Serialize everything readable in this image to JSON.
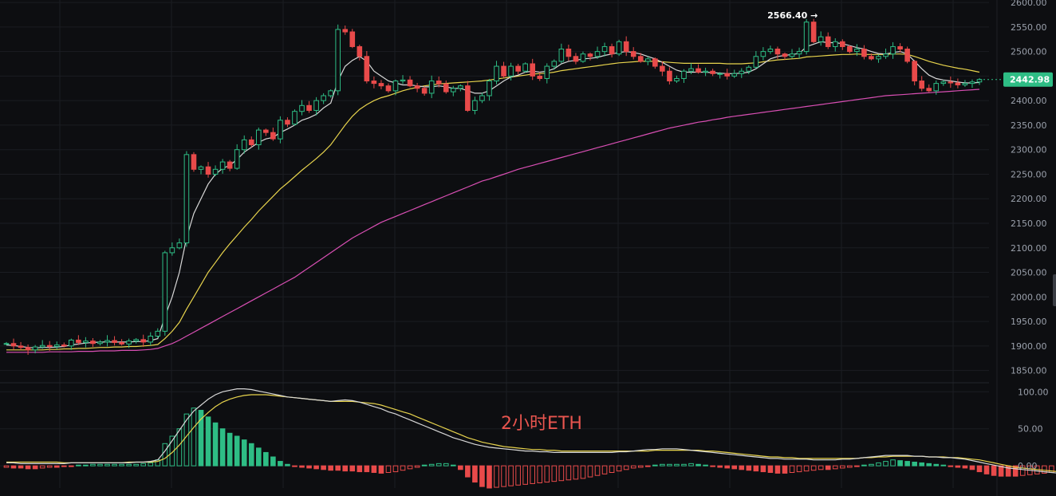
{
  "chart_data": [
    {
      "type": "candlestick",
      "series": [
        {
          "name": "",
          "kind": "candlestick"
        },
        {
          "name": "",
          "kind": "line",
          "color": "#d8d8d8"
        },
        {
          "name": "",
          "kind": "line",
          "color": "#e8d44d"
        },
        {
          "name": "",
          "kind": "line",
          "color": "#d94fb4"
        }
      ],
      "close": [
        1905,
        1900,
        1897,
        1892,
        1898,
        1901,
        1899,
        1902,
        1900,
        1912,
        1907,
        1910,
        1905,
        1908,
        1911,
        1907,
        1904,
        1910,
        1913,
        1908,
        1920,
        1930,
        2090,
        2100,
        2110,
        2290,
        2260,
        2265,
        2250,
        2260,
        2275,
        2262,
        2300,
        2320,
        2310,
        2340,
        2335,
        2322,
        2360,
        2352,
        2378,
        2390,
        2380,
        2400,
        2410,
        2420,
        2545,
        2540,
        2510,
        2490,
        2440,
        2435,
        2430,
        2420,
        2440,
        2442,
        2430,
        2425,
        2415,
        2440,
        2434,
        2418,
        2425,
        2430,
        2380,
        2400,
        2410,
        2440,
        2470,
        2450,
        2470,
        2460,
        2475,
        2450,
        2445,
        2470,
        2480,
        2505,
        2490,
        2480,
        2495,
        2490,
        2500,
        2510,
        2495,
        2520,
        2500,
        2490,
        2480,
        2485,
        2470,
        2460,
        2440,
        2445,
        2460,
        2465,
        2458,
        2460,
        2455,
        2455,
        2450,
        2455,
        2460,
        2468,
        2490,
        2500,
        2505,
        2495,
        2490,
        2495,
        2500,
        2560,
        2520,
        2530,
        2510,
        2520,
        2510,
        2500,
        2505,
        2490,
        2485,
        2490,
        2495,
        2510,
        2505,
        2480,
        2440,
        2425,
        2420,
        2435,
        2438,
        2436,
        2432,
        2435,
        2438,
        2442.98
      ],
      "open": [
        1905,
        1905,
        1900,
        1897,
        1892,
        1898,
        1901,
        1899,
        1902,
        1900,
        1912,
        1907,
        1910,
        1905,
        1908,
        1911,
        1907,
        1904,
        1910,
        1913,
        1908,
        1920,
        1930,
        2090,
        2100,
        2110,
        2290,
        2260,
        2265,
        2250,
        2260,
        2275,
        2262,
        2300,
        2320,
        2310,
        2340,
        2335,
        2322,
        2360,
        2352,
        2378,
        2390,
        2380,
        2400,
        2410,
        2420,
        2545,
        2540,
        2510,
        2490,
        2440,
        2435,
        2430,
        2420,
        2440,
        2442,
        2430,
        2425,
        2415,
        2440,
        2434,
        2418,
        2425,
        2430,
        2380,
        2400,
        2410,
        2440,
        2470,
        2450,
        2470,
        2460,
        2475,
        2450,
        2445,
        2470,
        2480,
        2505,
        2490,
        2480,
        2495,
        2490,
        2500,
        2510,
        2495,
        2520,
        2500,
        2490,
        2480,
        2485,
        2470,
        2460,
        2440,
        2445,
        2460,
        2465,
        2458,
        2460,
        2455,
        2455,
        2450,
        2455,
        2460,
        2468,
        2490,
        2500,
        2505,
        2495,
        2490,
        2495,
        2500,
        2560,
        2520,
        2530,
        2510,
        2520,
        2510,
        2500,
        2505,
        2490,
        2485,
        2490,
        2495,
        2510,
        2505,
        2480,
        2440,
        2425,
        2420,
        2435,
        2438,
        2436,
        2432,
        2435,
        2438
      ],
      "ma_fast": [
        1902,
        1901,
        1899,
        1897,
        1896,
        1897,
        1897,
        1898,
        1899,
        1902,
        1904,
        1906,
        1907,
        1908,
        1908,
        1908,
        1908,
        1908,
        1909,
        1909,
        1911,
        1915,
        1960,
        2000,
        2050,
        2120,
        2170,
        2200,
        2230,
        2250,
        2262,
        2268,
        2280,
        2295,
        2305,
        2315,
        2322,
        2325,
        2335,
        2342,
        2350,
        2360,
        2365,
        2372,
        2385,
        2395,
        2440,
        2470,
        2482,
        2490,
        2480,
        2460,
        2450,
        2440,
        2436,
        2432,
        2432,
        2430,
        2428,
        2428,
        2430,
        2428,
        2425,
        2425,
        2420,
        2415,
        2415,
        2420,
        2430,
        2440,
        2448,
        2452,
        2458,
        2460,
        2458,
        2460,
        2465,
        2475,
        2480,
        2482,
        2485,
        2486,
        2488,
        2492,
        2495,
        2498,
        2500,
        2498,
        2495,
        2490,
        2485,
        2478,
        2470,
        2462,
        2458,
        2458,
        2458,
        2458,
        2457,
        2456,
        2455,
        2455,
        2456,
        2458,
        2465,
        2475,
        2485,
        2490,
        2492,
        2494,
        2496,
        2510,
        2515,
        2520,
        2518,
        2518,
        2516,
        2512,
        2508,
        2505,
        2500,
        2496,
        2495,
        2498,
        2500,
        2495,
        2480,
        2465,
        2452,
        2445,
        2442,
        2440,
        2438,
        2436,
        2436,
        2437
      ],
      "ma_mid": [
        1892,
        1892,
        1892,
        1892,
        1892,
        1892,
        1893,
        1893,
        1894,
        1894,
        1895,
        1895,
        1896,
        1897,
        1897,
        1898,
        1898,
        1899,
        1899,
        1900,
        1901,
        1903,
        1915,
        1930,
        1948,
        1975,
        2000,
        2025,
        2050,
        2070,
        2090,
        2108,
        2125,
        2142,
        2158,
        2175,
        2190,
        2205,
        2220,
        2232,
        2245,
        2258,
        2270,
        2282,
        2295,
        2310,
        2330,
        2350,
        2368,
        2382,
        2392,
        2400,
        2406,
        2410,
        2415,
        2420,
        2424,
        2427,
        2430,
        2432,
        2434,
        2435,
        2436,
        2437,
        2438,
        2439,
        2440,
        2442,
        2444,
        2446,
        2448,
        2450,
        2452,
        2454,
        2455,
        2456,
        2458,
        2461,
        2463,
        2465,
        2467,
        2469,
        2471,
        2473,
        2475,
        2477,
        2478,
        2479,
        2480,
        2480,
        2480,
        2479,
        2478,
        2477,
        2476,
        2476,
        2476,
        2476,
        2476,
        2476,
        2475,
        2475,
        2475,
        2476,
        2477,
        2479,
        2481,
        2483,
        2484,
        2485,
        2486,
        2489,
        2490,
        2491,
        2492,
        2493,
        2494,
        2494,
        2495,
        2494,
        2494,
        2494,
        2494,
        2495,
        2495,
        2494,
        2490,
        2485,
        2480,
        2476,
        2472,
        2469,
        2466,
        2464,
        2461,
        2458
      ],
      "ma_slow": [
        1887,
        1887,
        1887,
        1887,
        1887,
        1887,
        1888,
        1888,
        1888,
        1888,
        1889,
        1889,
        1889,
        1890,
        1890,
        1890,
        1891,
        1891,
        1891,
        1892,
        1893,
        1895,
        1900,
        1905,
        1912,
        1920,
        1928,
        1936,
        1944,
        1952,
        1960,
        1968,
        1976,
        1984,
        1992,
        2000,
        2008,
        2016,
        2024,
        2032,
        2040,
        2050,
        2060,
        2070,
        2080,
        2090,
        2100,
        2110,
        2120,
        2128,
        2136,
        2144,
        2152,
        2158,
        2164,
        2170,
        2176,
        2182,
        2188,
        2194,
        2200,
        2206,
        2212,
        2218,
        2224,
        2230,
        2236,
        2240,
        2245,
        2250,
        2255,
        2260,
        2264,
        2268,
        2272,
        2276,
        2280,
        2284,
        2288,
        2292,
        2296,
        2300,
        2304,
        2308,
        2312,
        2316,
        2320,
        2324,
        2328,
        2332,
        2336,
        2340,
        2344,
        2347,
        2350,
        2353,
        2356,
        2358,
        2361,
        2363,
        2366,
        2368,
        2370,
        2372,
        2374,
        2376,
        2378,
        2380,
        2382,
        2384,
        2386,
        2388,
        2390,
        2392,
        2394,
        2396,
        2398,
        2400,
        2402,
        2404,
        2406,
        2408,
        2410,
        2411,
        2412,
        2413,
        2414,
        2415,
        2416,
        2417,
        2418,
        2419,
        2420,
        2421,
        2422,
        2423
      ],
      "y_ticks": [
        "2600.00",
        "2550.00",
        "2500.00",
        "2450.00",
        "2400.00",
        "2350.00",
        "2300.00",
        "2250.00",
        "2200.00",
        "2150.00",
        "2100.00",
        "2050.00",
        "2000.00",
        "1950.00",
        "1900.00",
        "1850.00"
      ],
      "ylim": [
        1825,
        2605
      ],
      "last_price": "2442.98",
      "last_price_value": 2442.98,
      "high_annotation": "2566.40 →",
      "high_value": 2566.4,
      "high_index": 112
    },
    {
      "type": "bar",
      "y_ticks": [
        "100.00",
        "50.00",
        "0.00"
      ],
      "ylim": [
        -30,
        110
      ],
      "histogram": [
        -2,
        -3,
        -3,
        -4,
        -4,
        -3,
        -2,
        -2,
        -1,
        -1,
        1,
        1,
        2,
        2,
        2,
        2,
        2,
        2,
        2,
        3,
        4,
        8,
        30,
        40,
        50,
        70,
        78,
        75,
        66,
        58,
        50,
        44,
        40,
        35,
        30,
        24,
        18,
        12,
        6,
        2,
        -1,
        -2,
        -3,
        -4,
        -5,
        -6,
        -6,
        -7,
        -7,
        -8,
        -8,
        -9,
        -10,
        -9,
        -8,
        -6,
        -4,
        -2,
        1,
        2,
        3,
        3,
        1,
        -5,
        -15,
        -22,
        -28,
        -30,
        -29,
        -28,
        -27,
        -26,
        -25,
        -24,
        -23,
        -22,
        -21,
        -20,
        -19,
        -18,
        -17,
        -15,
        -13,
        -11,
        -9,
        -7,
        -5,
        -3,
        -2,
        -1,
        1,
        2,
        2,
        2,
        2,
        3,
        2,
        1,
        -1,
        -2,
        -3,
        -4,
        -5,
        -6,
        -7,
        -8,
        -9,
        -10,
        -10,
        -9,
        -8,
        -7,
        -6,
        -5,
        -5,
        -4,
        -3,
        -2,
        -1,
        1,
        2,
        4,
        6,
        8,
        7,
        6,
        5,
        4,
        3,
        2,
        1,
        -1,
        -2,
        -3,
        -5,
        -8,
        -11,
        -13,
        -14,
        -14,
        -14,
        -13,
        -12,
        -11,
        -10,
        -9,
        -8,
        -7
      ],
      "line_fast": [
        4,
        4,
        3,
        3,
        3,
        3,
        3,
        3,
        3,
        4,
        4,
        4,
        4,
        4,
        4,
        4,
        4,
        4,
        5,
        5,
        6,
        8,
        20,
        34,
        48,
        62,
        74,
        82,
        90,
        96,
        100,
        102,
        104,
        104,
        103,
        101,
        99,
        97,
        95,
        93,
        92,
        91,
        90,
        89,
        88,
        87,
        88,
        89,
        88,
        86,
        83,
        80,
        77,
        73,
        70,
        66,
        62,
        58,
        54,
        50,
        46,
        42,
        38,
        35,
        32,
        29,
        27,
        25,
        24,
        23,
        22,
        21,
        20,
        20,
        19,
        19,
        18,
        18,
        18,
        18,
        18,
        18,
        18,
        18,
        18,
        19,
        19,
        20,
        21,
        22,
        22,
        23,
        23,
        23,
        22,
        21,
        20,
        19,
        18,
        17,
        16,
        15,
        14,
        13,
        12,
        11,
        10,
        10,
        9,
        9,
        9,
        9,
        8,
        8,
        8,
        8,
        9,
        9,
        10,
        11,
        12,
        13,
        14,
        14,
        14,
        14,
        13,
        13,
        12,
        12,
        11,
        11,
        10,
        9,
        7,
        5,
        3,
        1,
        -1,
        -3,
        -4,
        -5,
        -6,
        -7,
        -8,
        -9,
        -10
      ],
      "line_slow": [
        5,
        5,
        5,
        5,
        5,
        5,
        5,
        5,
        4,
        4,
        4,
        4,
        4,
        4,
        4,
        4,
        4,
        5,
        5,
        5,
        5,
        6,
        10,
        18,
        28,
        40,
        52,
        63,
        72,
        80,
        86,
        90,
        93,
        95,
        96,
        96,
        96,
        95,
        94,
        93,
        92,
        91,
        90,
        89,
        88,
        87,
        87,
        87,
        87,
        86,
        85,
        84,
        82,
        79,
        76,
        73,
        70,
        66,
        62,
        58,
        54,
        50,
        46,
        42,
        38,
        35,
        32,
        30,
        28,
        26,
        25,
        24,
        23,
        22,
        22,
        21,
        21,
        20,
        20,
        20,
        20,
        20,
        20,
        20,
        20,
        20,
        20,
        20,
        20,
        20,
        21,
        21,
        21,
        21,
        21,
        21,
        21,
        20,
        20,
        19,
        18,
        17,
        16,
        15,
        14,
        13,
        12,
        12,
        11,
        11,
        10,
        10,
        10,
        10,
        10,
        10,
        10,
        10,
        10,
        11,
        11,
        12,
        12,
        13,
        13,
        13,
        13,
        13,
        12,
        12,
        12,
        11,
        11,
        10,
        9,
        8,
        6,
        4,
        2,
        0,
        -2,
        -3,
        -4,
        -5,
        -6,
        -7,
        -8,
        -9
      ]
    }
  ],
  "watermark": "2小时ETH",
  "colors": {
    "background": "#0d0e11",
    "grid": "#1b1d22",
    "up": "#2ebd85",
    "down": "#e84a4a",
    "ma_fast": "#d8d8d8",
    "ma_mid": "#e8d44d",
    "ma_slow": "#d94fb4",
    "axis_text": "#9aa0ab",
    "last_price_badge": "#2ebd85",
    "watermark": "#e8554f"
  }
}
